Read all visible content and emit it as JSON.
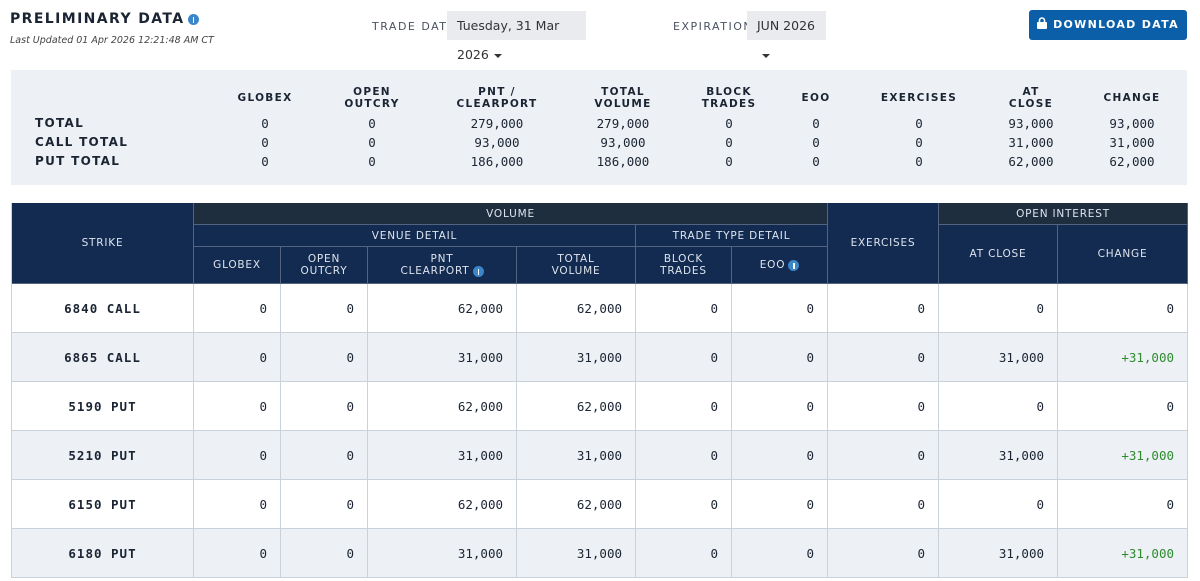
{
  "header": {
    "title": "PRELIMINARY DATA",
    "last_updated": "Last Updated 01 Apr 2026 12:21:48 AM CT",
    "trade_date_label": "TRADE DATE",
    "trade_date": "Tuesday, 31 Mar 2026",
    "expiration_label": "EXPIRATION",
    "expiration": "JUN 2026",
    "download_button": "DOWNLOAD DATA"
  },
  "summary": {
    "columns": [
      [
        "GLOBEX"
      ],
      [
        "OPEN",
        "OUTCRY"
      ],
      [
        "PNT /",
        "CLEARPORT"
      ],
      [
        "TOTAL",
        "VOLUME"
      ],
      [
        "BLOCK",
        "TRADES"
      ],
      [
        "EOO"
      ],
      [
        "EXERCISES"
      ],
      [
        "AT",
        "CLOSE"
      ],
      [
        "CHANGE"
      ]
    ],
    "rows": [
      {
        "label": "TOTAL",
        "values": [
          "0",
          "0",
          "279,000",
          "279,000",
          "0",
          "0",
          "0",
          "93,000",
          "93,000"
        ]
      },
      {
        "label": "CALL TOTAL",
        "values": [
          "0",
          "0",
          "93,000",
          "93,000",
          "0",
          "0",
          "0",
          "31,000",
          "31,000"
        ]
      },
      {
        "label": "PUT TOTAL",
        "values": [
          "0",
          "0",
          "186,000",
          "186,000",
          "0",
          "0",
          "0",
          "62,000",
          "62,000"
        ]
      }
    ]
  },
  "table": {
    "strike_header": "STRIKE",
    "volume_header": "VOLUME",
    "open_interest_header": "OPEN INTEREST",
    "venue_detail_header": "VENUE DETAIL",
    "trade_type_detail_header": "TRADE TYPE DETAIL",
    "exercises_header": "EXERCISES",
    "columns": [
      [
        "GLOBEX"
      ],
      [
        "OPEN",
        "OUTCRY"
      ],
      [
        "PNT",
        "CLEARPORT"
      ],
      [
        "TOTAL",
        "VOLUME"
      ],
      [
        "BLOCK",
        "TRADES"
      ],
      [
        "EOO"
      ],
      [
        "AT CLOSE"
      ],
      [
        "CHANGE"
      ]
    ],
    "rows": [
      {
        "strike": "6840 CALL",
        "values": [
          "0",
          "0",
          "62,000",
          "62,000",
          "0",
          "0",
          "0",
          "0",
          "0"
        ]
      },
      {
        "strike": "6865 CALL",
        "values": [
          "0",
          "0",
          "31,000",
          "31,000",
          "0",
          "0",
          "0",
          "31,000",
          "+31,000"
        ]
      },
      {
        "strike": "5190 PUT",
        "values": [
          "0",
          "0",
          "62,000",
          "62,000",
          "0",
          "0",
          "0",
          "0",
          "0"
        ]
      },
      {
        "strike": "5210 PUT",
        "values": [
          "0",
          "0",
          "31,000",
          "31,000",
          "0",
          "0",
          "0",
          "31,000",
          "+31,000"
        ]
      },
      {
        "strike": "6150 PUT",
        "values": [
          "0",
          "0",
          "62,000",
          "62,000",
          "0",
          "0",
          "0",
          "0",
          "0"
        ]
      },
      {
        "strike": "6180 PUT",
        "values": [
          "0",
          "0",
          "31,000",
          "31,000",
          "0",
          "0",
          "0",
          "31,000",
          "+31,000"
        ]
      }
    ]
  }
}
